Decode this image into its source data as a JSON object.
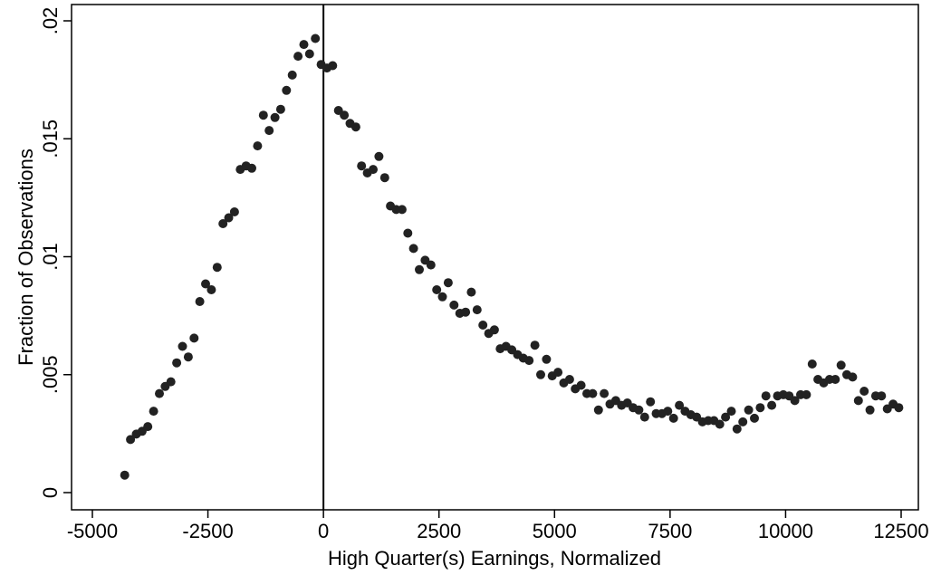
{
  "chart_data": {
    "type": "scatter",
    "xlabel": "High Quarter(s) Earnings, Normalized",
    "ylabel": "Fraction of Observations",
    "xlim": [
      -5000,
      12500
    ],
    "ylim": [
      0,
      0.02
    ],
    "xticks": [
      -5000,
      -2500,
      0,
      2500,
      5000,
      7500,
      10000,
      12500
    ],
    "xtick_labels": [
      "-5000",
      "-2500",
      "0",
      "2500",
      "5000",
      "7500",
      "10000",
      "12500"
    ],
    "yticks": [
      0,
      0.005,
      0.01,
      0.015,
      0.02
    ],
    "ytick_labels": [
      "0",
      ".005",
      ".01",
      ".015",
      ".02"
    ],
    "reference_line_x": 0,
    "grid": false,
    "marker_color": "#222222",
    "points": [
      [
        -4300,
        0.00074
      ],
      [
        -4175,
        0.00225
      ],
      [
        -4050,
        0.00248
      ],
      [
        -3925,
        0.0026
      ],
      [
        -3800,
        0.0028
      ],
      [
        -3675,
        0.00345
      ],
      [
        -3550,
        0.0042
      ],
      [
        -3425,
        0.0045
      ],
      [
        -3300,
        0.0047
      ],
      [
        -3175,
        0.0055
      ],
      [
        -3050,
        0.0062
      ],
      [
        -2925,
        0.00575
      ],
      [
        -2800,
        0.00655
      ],
      [
        -2675,
        0.0081
      ],
      [
        -2550,
        0.00885
      ],
      [
        -2425,
        0.0086
      ],
      [
        -2300,
        0.00955
      ],
      [
        -2175,
        0.0114
      ],
      [
        -2050,
        0.01165
      ],
      [
        -1925,
        0.0119
      ],
      [
        -1800,
        0.0137
      ],
      [
        -1675,
        0.01385
      ],
      [
        -1550,
        0.01375
      ],
      [
        -1425,
        0.0147
      ],
      [
        -1300,
        0.016
      ],
      [
        -1175,
        0.01535
      ],
      [
        -1050,
        0.0159
      ],
      [
        -925,
        0.01625
      ],
      [
        -800,
        0.01705
      ],
      [
        -675,
        0.0177
      ],
      [
        -550,
        0.0185
      ],
      [
        -425,
        0.019
      ],
      [
        -300,
        0.0186
      ],
      [
        -175,
        0.01925
      ],
      [
        -50,
        0.01815
      ],
      [
        75,
        0.018
      ],
      [
        200,
        0.0181
      ],
      [
        325,
        0.0162
      ],
      [
        450,
        0.016
      ],
      [
        575,
        0.01565
      ],
      [
        700,
        0.0155
      ],
      [
        825,
        0.01385
      ],
      [
        950,
        0.01355
      ],
      [
        1075,
        0.0137
      ],
      [
        1200,
        0.01425
      ],
      [
        1325,
        0.01335
      ],
      [
        1450,
        0.01215
      ],
      [
        1575,
        0.012
      ],
      [
        1700,
        0.012
      ],
      [
        1825,
        0.011
      ],
      [
        1950,
        0.01035
      ],
      [
        2075,
        0.00945
      ],
      [
        2200,
        0.00985
      ],
      [
        2325,
        0.00965
      ],
      [
        2450,
        0.0086
      ],
      [
        2575,
        0.0083
      ],
      [
        2700,
        0.0089
      ],
      [
        2825,
        0.00795
      ],
      [
        2950,
        0.0076
      ],
      [
        3075,
        0.00765
      ],
      [
        3200,
        0.0085
      ],
      [
        3325,
        0.00775
      ],
      [
        3450,
        0.0071
      ],
      [
        3575,
        0.00675
      ],
      [
        3700,
        0.0069
      ],
      [
        3825,
        0.0061
      ],
      [
        3950,
        0.0062
      ],
      [
        4075,
        0.00605
      ],
      [
        4200,
        0.00585
      ],
      [
        4325,
        0.0057
      ],
      [
        4450,
        0.0056
      ],
      [
        4575,
        0.00625
      ],
      [
        4700,
        0.005
      ],
      [
        4825,
        0.00565
      ],
      [
        4950,
        0.00495
      ],
      [
        5075,
        0.0051
      ],
      [
        5200,
        0.00465
      ],
      [
        5325,
        0.0048
      ],
      [
        5450,
        0.0044
      ],
      [
        5575,
        0.00455
      ],
      [
        5700,
        0.0042
      ],
      [
        5825,
        0.0042
      ],
      [
        5950,
        0.0035
      ],
      [
        6075,
        0.0042
      ],
      [
        6200,
        0.00375
      ],
      [
        6325,
        0.0039
      ],
      [
        6450,
        0.0037
      ],
      [
        6575,
        0.0038
      ],
      [
        6700,
        0.0036
      ],
      [
        6825,
        0.0035
      ],
      [
        6950,
        0.0032
      ],
      [
        7075,
        0.00385
      ],
      [
        7200,
        0.00335
      ],
      [
        7325,
        0.00335
      ],
      [
        7450,
        0.00345
      ],
      [
        7575,
        0.00315
      ],
      [
        7700,
        0.0037
      ],
      [
        7825,
        0.00345
      ],
      [
        7950,
        0.0033
      ],
      [
        8075,
        0.0032
      ],
      [
        8200,
        0.003
      ],
      [
        8325,
        0.00305
      ],
      [
        8450,
        0.00305
      ],
      [
        8575,
        0.0029
      ],
      [
        8700,
        0.0032
      ],
      [
        8825,
        0.00345
      ],
      [
        8950,
        0.0027
      ],
      [
        9075,
        0.003
      ],
      [
        9200,
        0.0035
      ],
      [
        9325,
        0.00315
      ],
      [
        9450,
        0.0036
      ],
      [
        9575,
        0.0041
      ],
      [
        9700,
        0.0037
      ],
      [
        9825,
        0.0041
      ],
      [
        9950,
        0.00415
      ],
      [
        10075,
        0.0041
      ],
      [
        10200,
        0.0039
      ],
      [
        10325,
        0.00415
      ],
      [
        10450,
        0.00415
      ],
      [
        10575,
        0.00545
      ],
      [
        10700,
        0.0048
      ],
      [
        10825,
        0.00465
      ],
      [
        10950,
        0.0048
      ],
      [
        11075,
        0.0048
      ],
      [
        11200,
        0.0054
      ],
      [
        11325,
        0.005
      ],
      [
        11450,
        0.0049
      ],
      [
        11575,
        0.0039
      ],
      [
        11700,
        0.0043
      ],
      [
        11825,
        0.0035
      ],
      [
        11950,
        0.0041
      ],
      [
        12075,
        0.0041
      ],
      [
        12200,
        0.00355
      ],
      [
        12325,
        0.00375
      ],
      [
        12450,
        0.0036
      ]
    ]
  }
}
